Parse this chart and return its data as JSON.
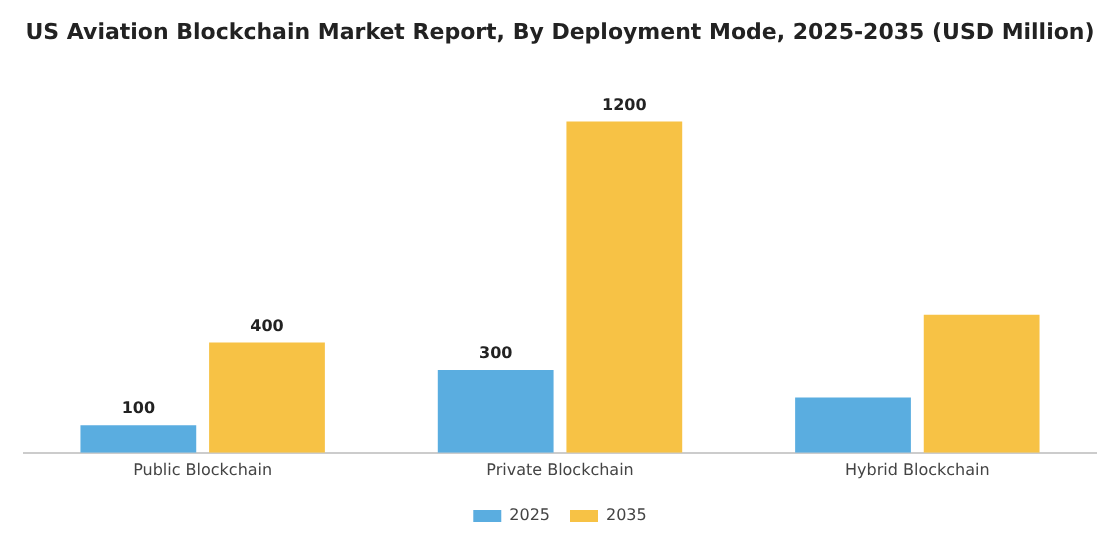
{
  "chart_data": {
    "type": "bar",
    "title": "US Aviation Blockchain Market Report, By Deployment Mode, 2025-2035 (USD Million)",
    "categories": [
      "Public Blockchain",
      "Private Blockchain",
      "Hybrid Blockchain"
    ],
    "series": [
      {
        "name": "2025",
        "color": "#5aade0",
        "values": [
          100,
          300,
          200
        ],
        "value_labels": [
          "100",
          "300",
          null
        ]
      },
      {
        "name": "2035",
        "color": "#f7c245",
        "values": [
          400,
          1200,
          500
        ],
        "value_labels": [
          "400",
          "1200",
          null
        ]
      }
    ],
    "legend": "bottom",
    "grid": false
  }
}
